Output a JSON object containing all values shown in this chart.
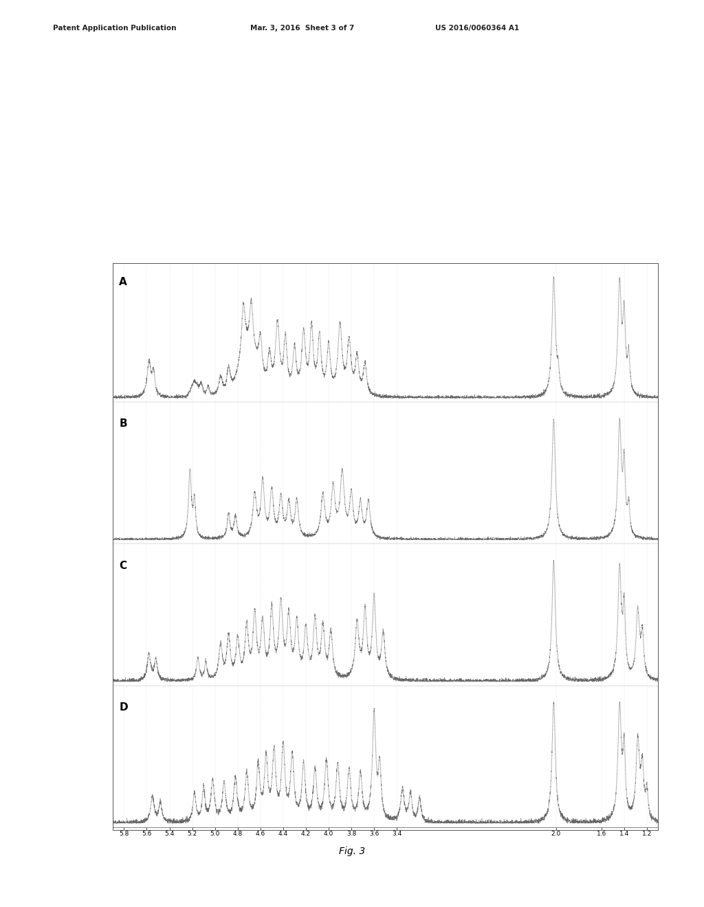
{
  "title": "Fig. 3",
  "header_left": "Patent Application Publication",
  "header_mid": "Mar. 3, 2016  Sheet 3 of 7",
  "header_right": "US 2016/0060364 A1",
  "x_ticks": [
    5.8,
    5.6,
    5.4,
    5.2,
    5.0,
    4.8,
    4.6,
    4.4,
    4.2,
    4.0,
    3.8,
    3.6,
    3.4,
    2.0,
    1.6,
    1.4,
    1.2
  ],
  "x_tick_labels": [
    "5.8",
    "5.6",
    "5.4",
    "5.2",
    "5.0",
    "4.8",
    "4.6",
    "4.4",
    "4.2",
    "4.0",
    "3.8",
    "3.6",
    "3.4",
    "2.0",
    "1.6",
    "1.4",
    "1.2"
  ],
  "x_min": 5.9,
  "x_max": 1.1,
  "labels": [
    "A",
    "B",
    "C",
    "D"
  ],
  "background_color": "#ffffff",
  "line_color": "#444444"
}
